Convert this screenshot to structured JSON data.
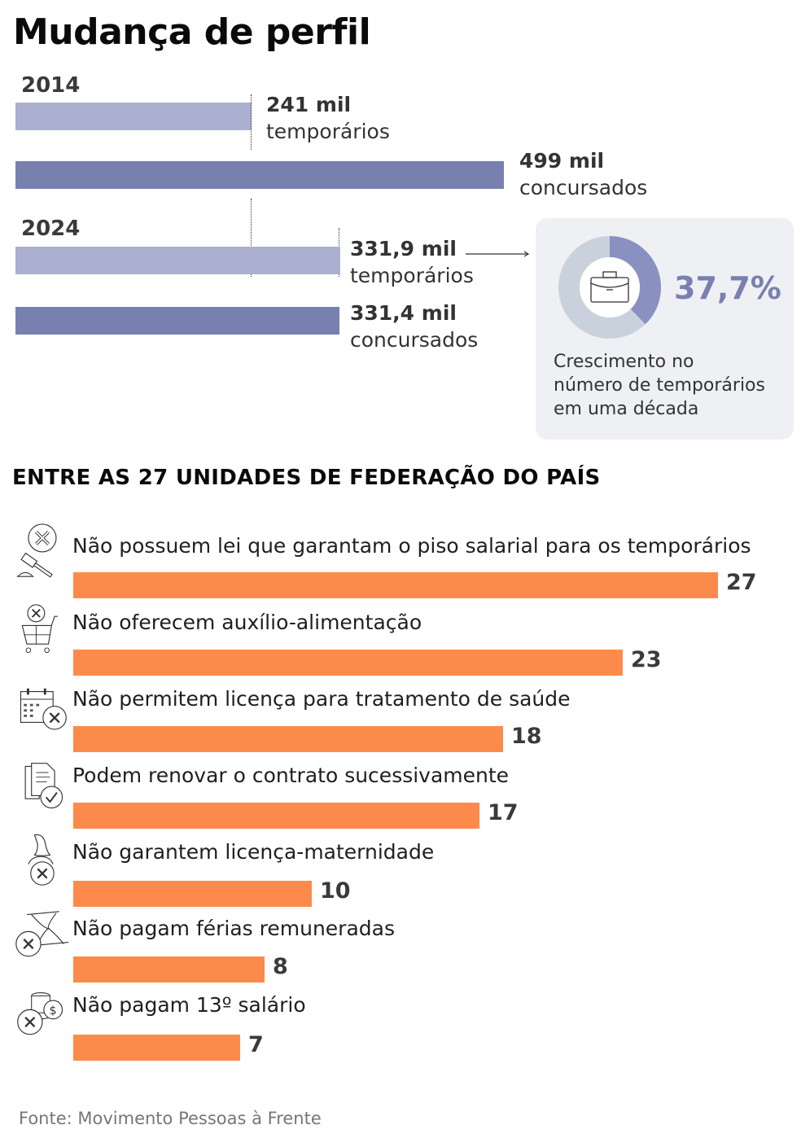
{
  "title": "Mudança de perfil",
  "profile": {
    "years": [
      {
        "year": "2014",
        "temporarios": {
          "value_text": "241 mil",
          "label": "temporários",
          "value": 241
        },
        "concursados": {
          "value_text": "499 mil",
          "label": "concursados",
          "value": 499
        }
      },
      {
        "year": "2024",
        "temporarios": {
          "value_text": "331,9 mil",
          "label": "temporários",
          "value": 331.9
        },
        "concursados": {
          "value_text": "331,4 mil",
          "label": "concursados",
          "value": 331.4
        }
      }
    ],
    "growth_card": {
      "percent_text": "37,7%",
      "percent_value": 37.7,
      "text_lines": [
        "Crescimento no",
        "número de temporários",
        "em uma década"
      ],
      "icon": "briefcase-icon",
      "colors": {
        "filled": "#8a90c0",
        "remaining": "#c9d2dc"
      }
    }
  },
  "section_title": "ENTRE AS 27 UNIDADES DE FEDERAÇÃO DO PAÍS",
  "items": [
    {
      "label": "Não possuem lei que garantam o piso salarial para os temporários",
      "value": 27,
      "icon": "gavel-x-icon"
    },
    {
      "label": "Não oferecem auxílio-alimentação",
      "value": 23,
      "icon": "cart-x-icon"
    },
    {
      "label": "Não permitem licença para tratamento de saúde",
      "value": 18,
      "icon": "calendar-x-icon"
    },
    {
      "label": "Podem renovar o contrato sucessivamente",
      "value": 17,
      "icon": "document-check-icon"
    },
    {
      "label": "Não garantem licença-maternidade",
      "value": 10,
      "icon": "woman-x-icon"
    },
    {
      "label": "Não pagam férias remuneradas",
      "value": 8,
      "icon": "hourglass-x-icon"
    },
    {
      "label": "Não pagam 13º salário",
      "value": 7,
      "icon": "coins-x-icon"
    }
  ],
  "source": "Fonte: Movimento Pessoas à Frente",
  "colors": {
    "light_bar": "#abb0d0",
    "dark_bar": "#7880b0",
    "orange_bar": "#fc8b4b"
  },
  "chart_data": [
    {
      "type": "bar",
      "title": "Mudança de perfil",
      "orientation": "horizontal",
      "categories": [
        "2014",
        "2024"
      ],
      "series": [
        {
          "name": "temporários",
          "values": [
            241,
            331.9
          ]
        },
        {
          "name": "concursados",
          "values": [
            499,
            331.4
          ]
        }
      ],
      "unit": "mil",
      "annotation": "37,7% — Crescimento no número de temporários em uma década"
    },
    {
      "type": "bar",
      "title": "ENTRE AS 27 UNIDADES DE FEDERAÇÃO DO PAÍS",
      "orientation": "horizontal",
      "categories": [
        "Não possuem lei que garantam o piso salarial para os temporários",
        "Não oferecem auxílio-alimentação",
        "Não permitem licença para tratamento de saúde",
        "Podem renovar o contrato sucessivamente",
        "Não garantem licença-maternidade",
        "Não pagam férias remuneradas",
        "Não pagam 13º salário"
      ],
      "values": [
        27,
        23,
        18,
        17,
        10,
        8,
        7
      ],
      "xlim": [
        0,
        27
      ]
    }
  ]
}
